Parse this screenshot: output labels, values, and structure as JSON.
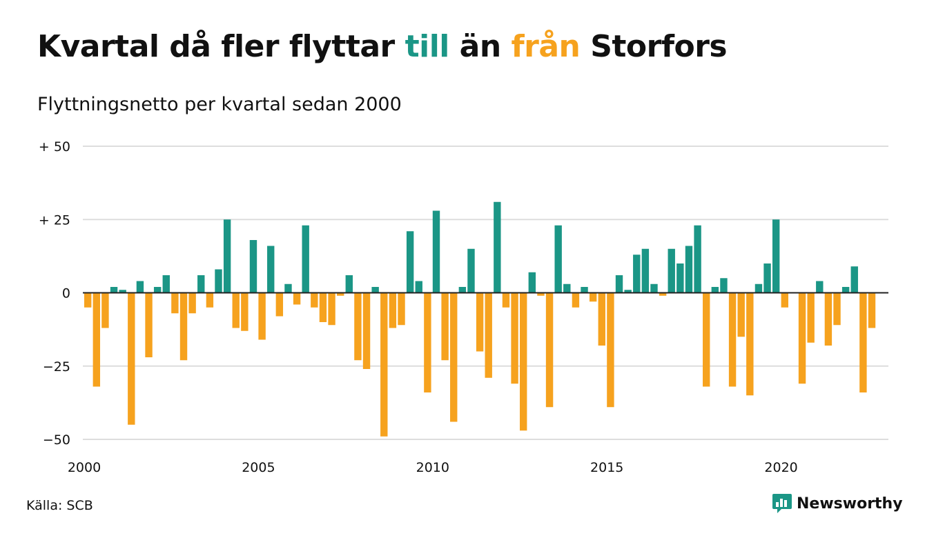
{
  "header": {
    "title_parts": [
      "Kvartal då fler flyttar ",
      "till",
      " än ",
      "från",
      " Storfors"
    ],
    "subtitle": "Flyttningsnetto per kvartal sedan 2000"
  },
  "footer": {
    "source": "Källa: SCB",
    "logo_text": "Newsworthy",
    "logo_icon": "newsworthy-chart-icon"
  },
  "colors": {
    "positive": "#1b9686",
    "negative": "#f6a21e",
    "grid": "#dddddd",
    "zero_line": "#222222",
    "text": "#111111"
  },
  "chart_data": {
    "type": "bar",
    "title": "Kvartal då fler flyttar till än från Storfors",
    "subtitle": "Flyttningsnetto per kvartal sedan 2000",
    "xlabel": "",
    "ylabel": "",
    "start_year": 2000,
    "quarters_per_year": 4,
    "values": [
      -5,
      -32,
      -12,
      2,
      1,
      -45,
      4,
      -22,
      2,
      6,
      -7,
      -23,
      -7,
      6,
      -5,
      8,
      25,
      -12,
      -13,
      18,
      -16,
      16,
      -8,
      3,
      -4,
      23,
      -5,
      -10,
      -11,
      -1,
      6,
      -23,
      -26,
      2,
      -49,
      -12,
      -11,
      21,
      4,
      -34,
      28,
      -23,
      -44,
      2,
      15,
      -20,
      -29,
      31,
      -5,
      -31,
      -47,
      7,
      -1,
      -39,
      23,
      3,
      -5,
      2,
      -3,
      -18,
      -39,
      6,
      1,
      13,
      15,
      3,
      -1,
      15,
      10,
      16,
      23,
      -32,
      2,
      5,
      -32,
      -15,
      -35,
      3,
      10,
      25,
      -5,
      0,
      -31,
      -17,
      4,
      -18,
      -11,
      2,
      9,
      -34,
      -12
    ],
    "ylim": [
      -50,
      50
    ],
    "yticks": [
      50,
      25,
      0,
      -25,
      -50
    ],
    "ytick_labels": [
      "+ 50",
      "+ 25",
      "0",
      "−25",
      "−50"
    ],
    "xticks": [
      2000,
      2005,
      2010,
      2015,
      2020
    ],
    "xtick_labels": [
      "2000",
      "2005",
      "2010",
      "2015",
      "2020"
    ],
    "grid": true,
    "legend": "none"
  }
}
